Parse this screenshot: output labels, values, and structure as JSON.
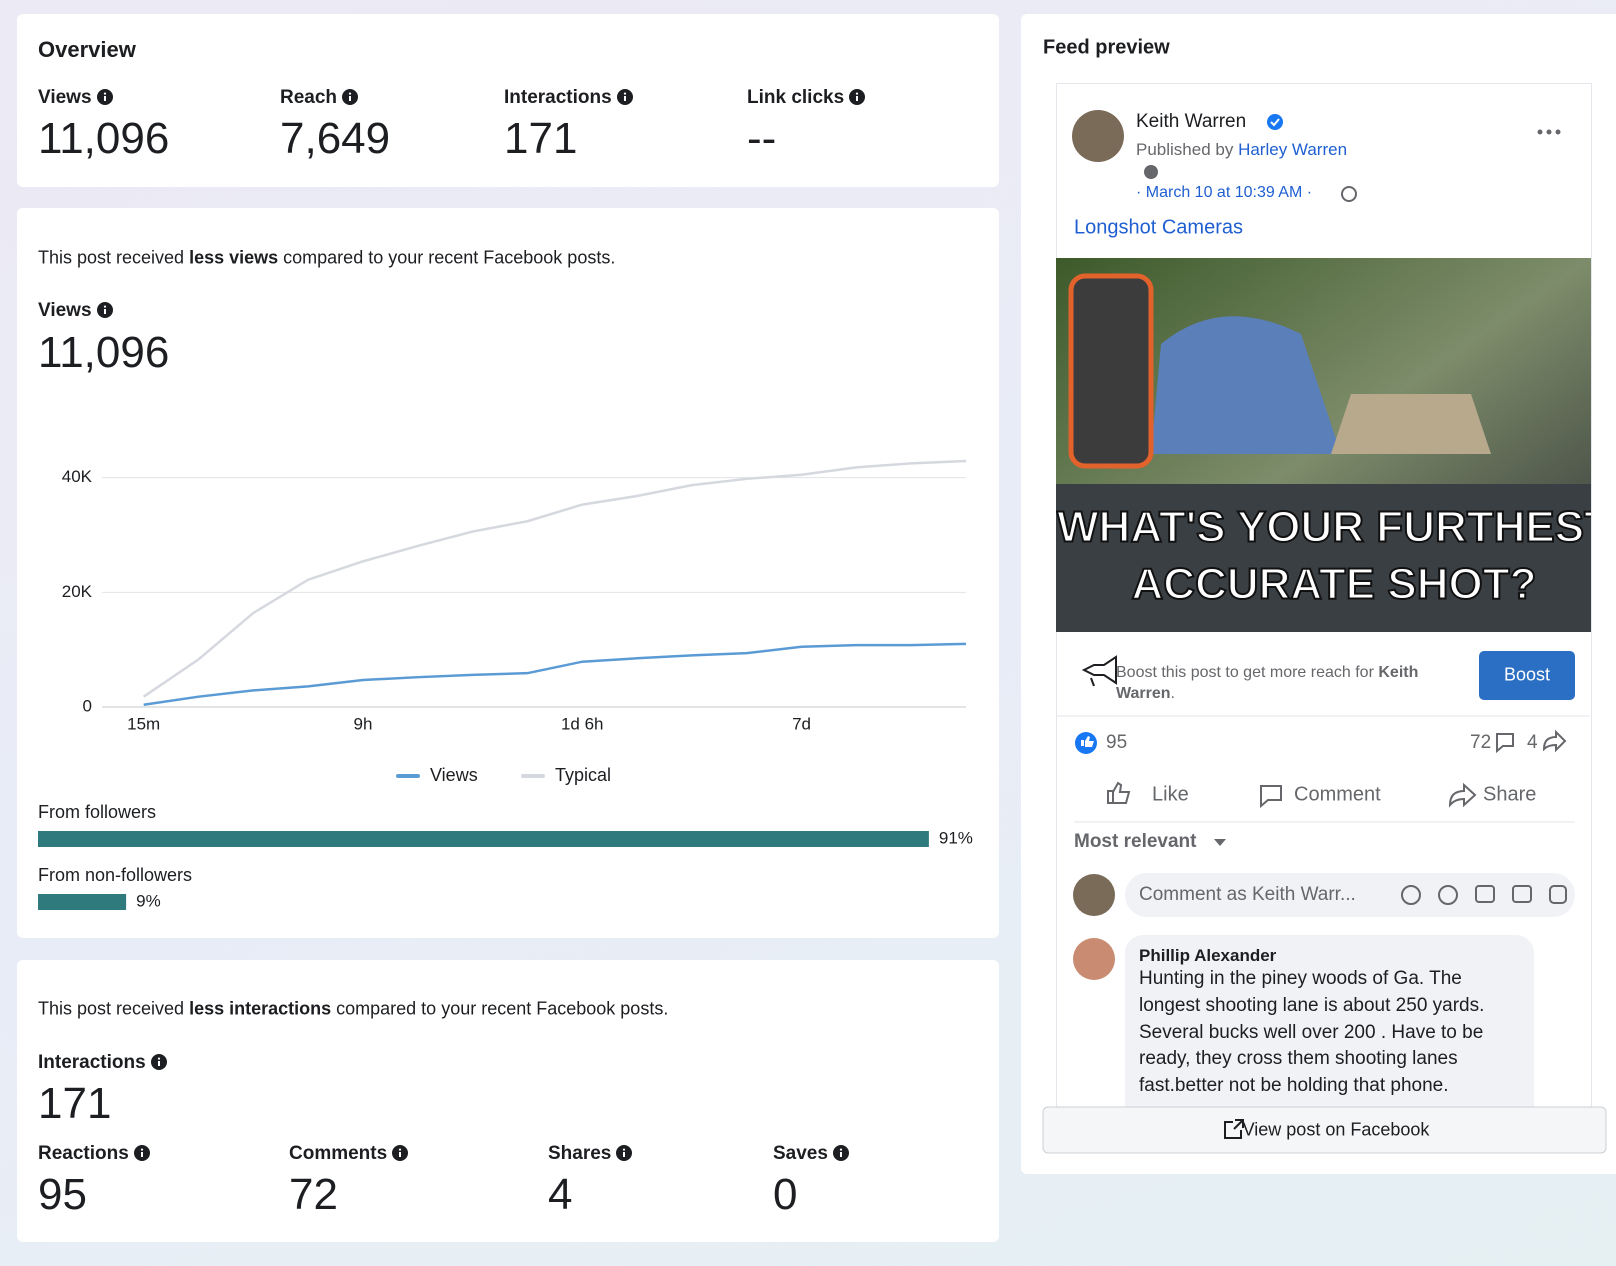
{
  "overview": {
    "title": "Overview",
    "metrics": [
      {
        "label": "Views",
        "value": "11,096"
      },
      {
        "label": "Reach",
        "value": "7,649"
      },
      {
        "label": "Interactions",
        "value": "171"
      },
      {
        "label": "Link clicks",
        "value": "--"
      }
    ]
  },
  "views_card": {
    "message": [
      "This post received ",
      "less views",
      " compared to your recent Facebook posts."
    ],
    "label": "Views",
    "value": "11,096",
    "chart_data": {
      "type": "line",
      "x": [
        0,
        0.25,
        0.5,
        0.75,
        1,
        1.25,
        1.5,
        1.75,
        2,
        2.25,
        2.5,
        2.75,
        3,
        3.25,
        3.5,
        3.75
      ],
      "xlim": [
        -0.19,
        3.75
      ],
      "xticks": [
        {
          "value": 0,
          "label": "15m"
        },
        {
          "value": 1,
          "label": "9h"
        },
        {
          "value": 2,
          "label": "1d 6h"
        },
        {
          "value": 3,
          "label": "7d"
        }
      ],
      "ylim": [
        0,
        45000
      ],
      "yticks": [
        0,
        {
          "value": 20000,
          "label": "20K"
        },
        {
          "value": 40000,
          "label": "40K"
        }
      ],
      "grid": true,
      "legend": "bottom",
      "series": [
        {
          "name": "Views",
          "color": "#5b9bd5",
          "values": [
            400,
            1800,
            2900,
            3600,
            4700,
            5200,
            5600,
            5900,
            7900,
            8500,
            9000,
            9400,
            10500,
            10800,
            10800,
            11000
          ]
        },
        {
          "name": "Typical",
          "color": "#d5d8de",
          "values": [
            1800,
            8300,
            16400,
            22200,
            25400,
            28100,
            30600,
            32400,
            35300,
            36800,
            38700,
            39800,
            40500,
            41800,
            42500,
            42900
          ]
        }
      ]
    },
    "audience": {
      "color": "#2f7a7d",
      "bars": [
        {
          "label": "From followers",
          "value": 91,
          "value_label": "91%"
        },
        {
          "label": "From non-followers",
          "value": 9,
          "value_label": "9%"
        }
      ]
    }
  },
  "interactions_card": {
    "message": [
      "This post received ",
      "less interactions",
      " compared to your recent Facebook posts."
    ],
    "label": "Interactions",
    "value": "171",
    "metrics": [
      {
        "label": "Reactions",
        "value": "95"
      },
      {
        "label": "Comments",
        "value": "72"
      },
      {
        "label": "Shares",
        "value": "4"
      },
      {
        "label": "Saves",
        "value": "0"
      }
    ]
  },
  "feed": {
    "title": "Feed preview",
    "author": "Keith Warren",
    "published_by": "Published by",
    "publisher": "Harley Warren",
    "date": "· March 10 at 10:39 AM ·",
    "link": "Longshot Cameras",
    "image_text": [
      "WHAT'S YOUR FURTHEST",
      "ACCURATE SHOT?"
    ],
    "boost_text": [
      "Boost this post to get more reach for ",
      "Keith",
      "Warren",
      "."
    ],
    "boost_button": "Boost",
    "reactions": "95",
    "comments": "72",
    "shares": "4",
    "actions": [
      "Like",
      "Comment",
      "Share"
    ],
    "sort": "Most relevant",
    "comment_placeholder": "Comment as Keith Warr...",
    "comment": {
      "author": "Phillip Alexander",
      "lines": [
        "Hunting in the piney woods of Ga. The",
        "longest shooting lane is about 250 yards.",
        "Several bucks well over 200 . Have to be",
        "ready, they cross them shooting lanes",
        "fast.better not be holding that phone."
      ]
    },
    "view_button": "View post on Facebook"
  }
}
